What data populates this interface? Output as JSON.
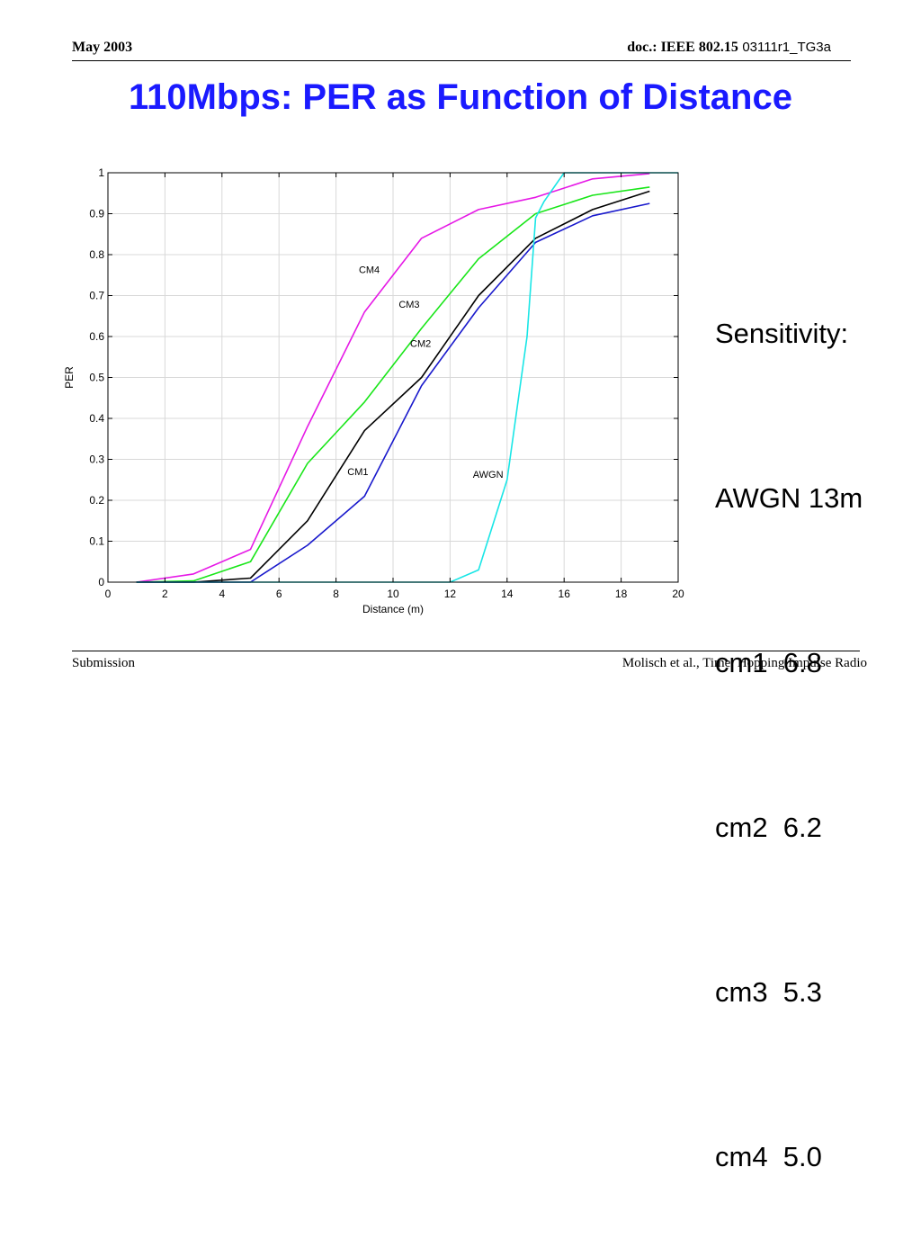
{
  "header": {
    "date": "May 2003",
    "doc_label": "doc.: IEEE 802.15",
    "doc_id": "03111r1_TG3a"
  },
  "slide_title": "110Mbps: PER as Function of Distance",
  "sidebar": {
    "lines": [
      "Sensitivity:",
      "AWGN 13m",
      "cm1  6.8",
      "cm2  6.2",
      "cm3  5.3",
      "cm4  5.0"
    ]
  },
  "footer": {
    "left": "Submission",
    "right": "Molisch et al., Time  Hopping Impulse Radio"
  },
  "chart_data": {
    "type": "line",
    "title": "",
    "xlabel": "Distance (m)",
    "ylabel": "PER",
    "xlim": [
      0,
      20
    ],
    "ylim": [
      0,
      1
    ],
    "x_ticks": [
      0,
      2,
      4,
      6,
      8,
      10,
      12,
      14,
      16,
      18,
      20
    ],
    "y_ticks": [
      0,
      0.1,
      0.2,
      0.3,
      0.4,
      0.5,
      0.6,
      0.7,
      0.8,
      0.9,
      1
    ],
    "y_tick_labels": [
      "0",
      "0.1",
      "0.2",
      "0.3",
      "0.4",
      "0.5",
      "0.6",
      "0.7",
      "0.8",
      "0.9",
      "1"
    ],
    "grid": true,
    "series": [
      {
        "name": "CM4",
        "color": "#e619e6",
        "x": [
          1,
          3,
          5,
          7,
          9,
          11,
          13,
          15,
          17,
          19
        ],
        "y": [
          0.0,
          0.02,
          0.08,
          0.38,
          0.66,
          0.84,
          0.91,
          0.94,
          0.985,
          0.998
        ]
      },
      {
        "name": "CM3",
        "color": "#19e619",
        "x": [
          1,
          3,
          5,
          7,
          9,
          11,
          13,
          15,
          17,
          19
        ],
        "y": [
          0.0,
          0.003,
          0.05,
          0.29,
          0.44,
          0.62,
          0.79,
          0.9,
          0.945,
          0.965
        ]
      },
      {
        "name": "CM2",
        "color": "#000000",
        "x": [
          1,
          3,
          5,
          7,
          9,
          11,
          13,
          15,
          17,
          19
        ],
        "y": [
          0.0,
          0.0,
          0.01,
          0.15,
          0.37,
          0.5,
          0.7,
          0.84,
          0.91,
          0.955
        ]
      },
      {
        "name": "CM1",
        "color": "#1919cc",
        "x": [
          1,
          3,
          5,
          7,
          9,
          11,
          13,
          15,
          17,
          19
        ],
        "y": [
          0.0,
          0.0,
          0.0,
          0.09,
          0.21,
          0.48,
          0.67,
          0.83,
          0.895,
          0.925
        ]
      },
      {
        "name": "AWGN",
        "color": "#19e6e6",
        "x": [
          1,
          12,
          13,
          14,
          14.7,
          15.0,
          15.3,
          16.0,
          18,
          20
        ],
        "y": [
          0.0,
          0.0,
          0.03,
          0.25,
          0.6,
          0.89,
          0.93,
          1.0,
          1.0,
          1.0
        ]
      }
    ],
    "annotations": [
      {
        "text": "CM4",
        "x": 8.8,
        "y": 0.755
      },
      {
        "text": "CM3",
        "x": 10.2,
        "y": 0.67
      },
      {
        "text": "CM2",
        "x": 10.6,
        "y": 0.575
      },
      {
        "text": "CM1",
        "x": 8.4,
        "y": 0.262
      },
      {
        "text": "AWGN",
        "x": 12.8,
        "y": 0.255
      }
    ]
  }
}
